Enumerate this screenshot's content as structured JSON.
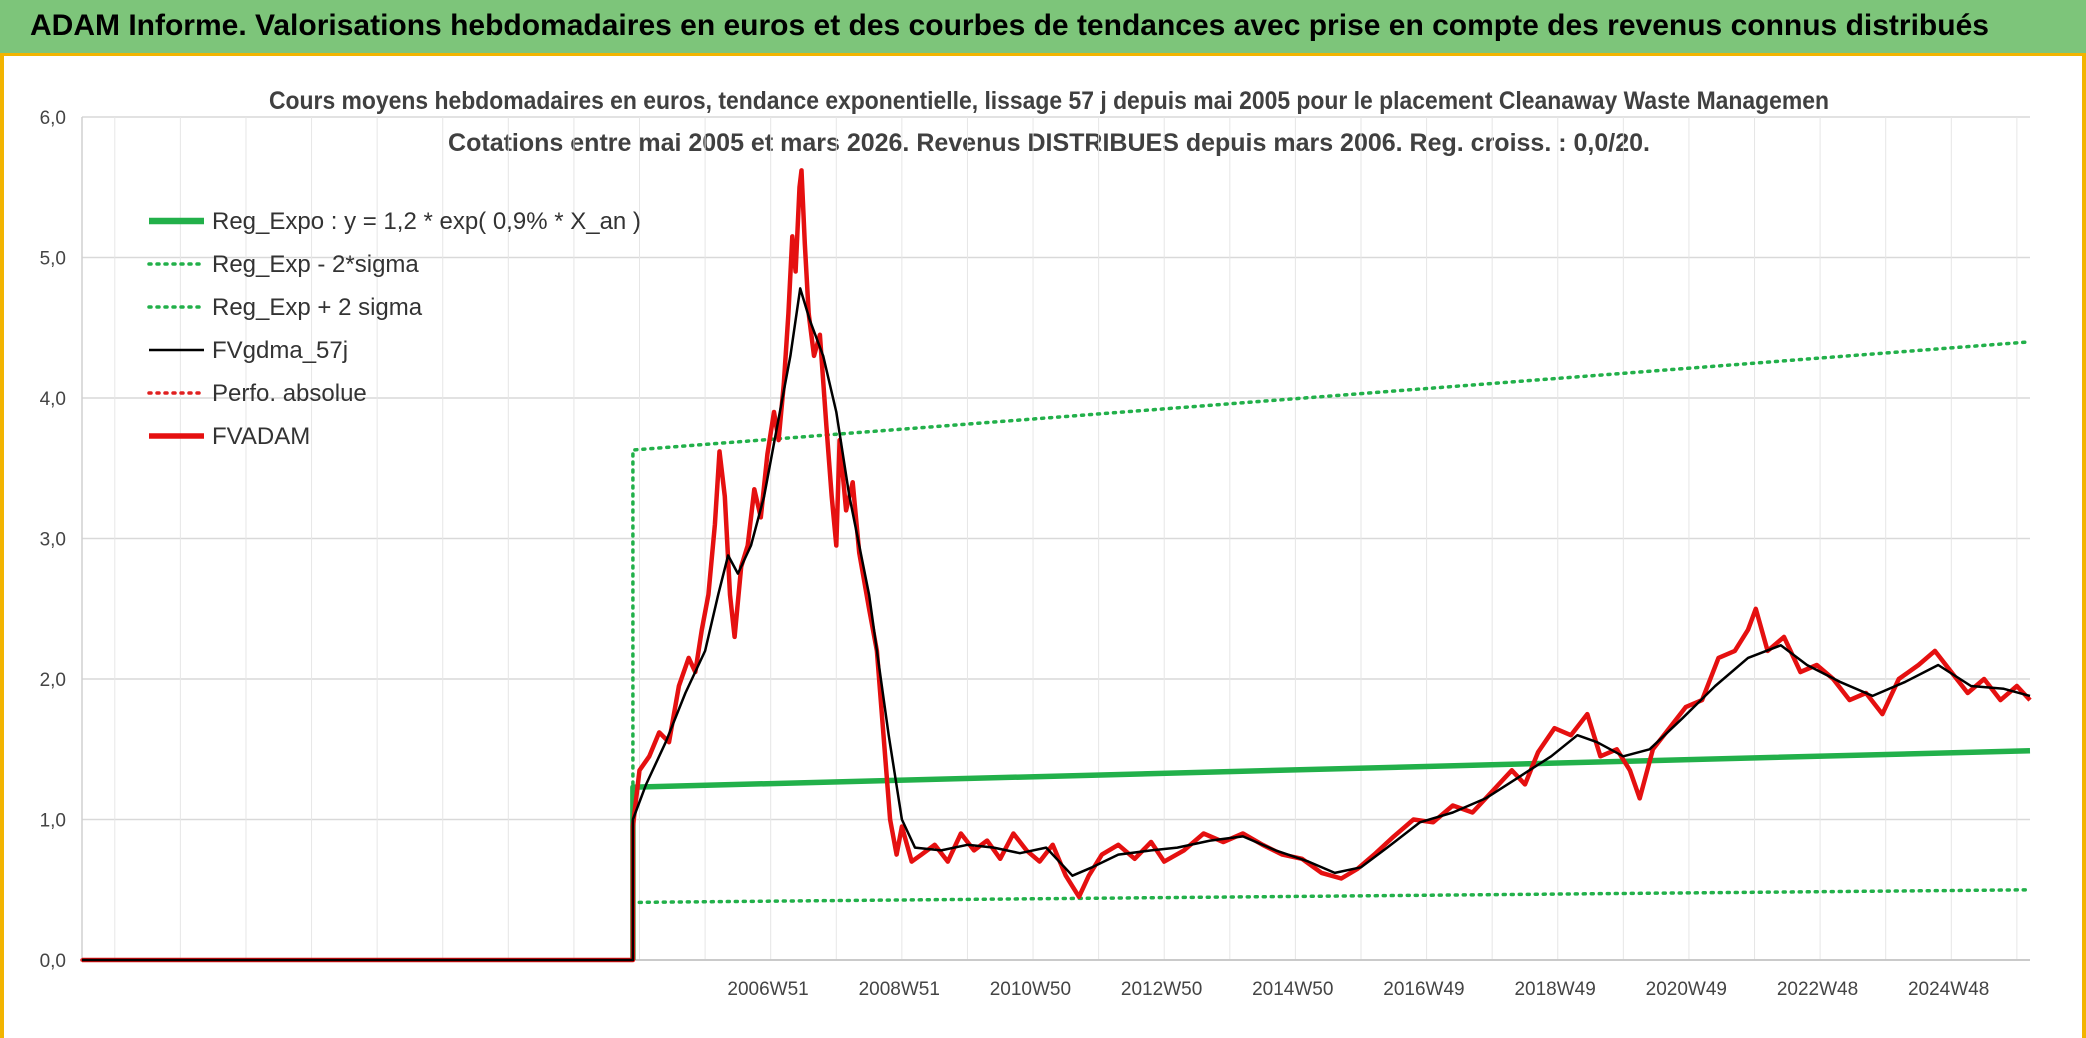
{
  "banner": {
    "title": "ADAM Informe. Valorisations hebdomadaires en euros et des courbes de tendances avec prise en compte des revenus connus distribués"
  },
  "chart_data": {
    "type": "line",
    "title": "Cours moyens hebdomadaires en euros, tendance exponentielle, lissage 57 j depuis mai 2005 pour le placement Cleanaway Waste Managemen",
    "subtitle": "Cotations entre mai 2005 et mars 2026. Revenus DISTRIBUES depuis mars 2006. Reg. croiss. : 0,0/20.",
    "xlabel": "",
    "ylabel": "",
    "x_range": [
      1996.5,
      2026.2
    ],
    "ylim": [
      0,
      6
    ],
    "y_ticks": [
      "0,0",
      "1,0",
      "2,0",
      "3,0",
      "4,0",
      "5,0",
      "6,0"
    ],
    "x_ticks": [
      {
        "label": "2006W51",
        "x": 2006.96
      },
      {
        "label": "2008W51",
        "x": 2008.96
      },
      {
        "label": "2010W50",
        "x": 2010.96
      },
      {
        "label": "2012W50",
        "x": 2012.96
      },
      {
        "label": "2014W50",
        "x": 2014.96
      },
      {
        "label": "2016W49",
        "x": 2016.96
      },
      {
        "label": "2018W49",
        "x": 2018.96
      },
      {
        "label": "2020W49",
        "x": 2020.96
      },
      {
        "label": "2022W48",
        "x": 2022.96
      },
      {
        "label": "2024W48",
        "x": 2024.96
      }
    ],
    "grid": true,
    "legend_position": "top-left",
    "series": [
      {
        "name": "Reg_Expo : y = 1,2 * exp( 0,9% *  X_an )",
        "color": "#22b04a",
        "style": "solid-thick",
        "points": [
          [
            2004.9,
            0
          ],
          [
            2004.9,
            1.23
          ],
          [
            2026.2,
            1.49
          ]
        ]
      },
      {
        "name": "Reg_Exp - 2*sigma",
        "color": "#22b04a",
        "style": "dotted",
        "points": [
          [
            2004.9,
            0
          ],
          [
            2004.9,
            0.41
          ],
          [
            2026.2,
            0.5
          ]
        ]
      },
      {
        "name": "Reg_Exp + 2 sigma",
        "color": "#22b04a",
        "style": "dotted",
        "points": [
          [
            2004.9,
            0
          ],
          [
            2004.9,
            3.63
          ],
          [
            2026.2,
            4.4
          ]
        ]
      },
      {
        "name": "FVgdma_57j",
        "color": "#000000",
        "style": "solid",
        "points": [
          [
            1996.5,
            0
          ],
          [
            2004.9,
            0
          ],
          [
            2004.9,
            1.0
          ],
          [
            2005.1,
            1.25
          ],
          [
            2005.4,
            1.55
          ],
          [
            2005.7,
            1.9
          ],
          [
            2006.0,
            2.2
          ],
          [
            2006.2,
            2.6
          ],
          [
            2006.35,
            2.88
          ],
          [
            2006.5,
            2.75
          ],
          [
            2006.7,
            2.95
          ],
          [
            2006.9,
            3.3
          ],
          [
            2007.1,
            3.8
          ],
          [
            2007.3,
            4.3
          ],
          [
            2007.45,
            4.78
          ],
          [
            2007.6,
            4.55
          ],
          [
            2007.8,
            4.3
          ],
          [
            2008.0,
            3.9
          ],
          [
            2008.2,
            3.3
          ],
          [
            2008.5,
            2.6
          ],
          [
            2008.8,
            1.6
          ],
          [
            2009.0,
            1.0
          ],
          [
            2009.2,
            0.8
          ],
          [
            2009.6,
            0.78
          ],
          [
            2010.0,
            0.82
          ],
          [
            2010.4,
            0.8
          ],
          [
            2010.8,
            0.76
          ],
          [
            2011.2,
            0.8
          ],
          [
            2011.6,
            0.6
          ],
          [
            2011.9,
            0.66
          ],
          [
            2012.3,
            0.75
          ],
          [
            2012.8,
            0.78
          ],
          [
            2013.2,
            0.8
          ],
          [
            2013.7,
            0.85
          ],
          [
            2014.2,
            0.88
          ],
          [
            2014.7,
            0.78
          ],
          [
            2015.2,
            0.7
          ],
          [
            2015.6,
            0.62
          ],
          [
            2016.0,
            0.66
          ],
          [
            2016.4,
            0.8
          ],
          [
            2016.9,
            0.98
          ],
          [
            2017.4,
            1.05
          ],
          [
            2017.9,
            1.15
          ],
          [
            2018.4,
            1.3
          ],
          [
            2018.9,
            1.45
          ],
          [
            2019.3,
            1.6
          ],
          [
            2019.6,
            1.55
          ],
          [
            2020.0,
            1.45
          ],
          [
            2020.4,
            1.5
          ],
          [
            2020.9,
            1.72
          ],
          [
            2021.4,
            1.95
          ],
          [
            2021.9,
            2.15
          ],
          [
            2022.4,
            2.24
          ],
          [
            2022.8,
            2.1
          ],
          [
            2023.3,
            1.98
          ],
          [
            2023.8,
            1.88
          ],
          [
            2024.3,
            1.98
          ],
          [
            2024.8,
            2.1
          ],
          [
            2025.3,
            1.95
          ],
          [
            2025.8,
            1.93
          ],
          [
            2026.2,
            1.88
          ]
        ]
      },
      {
        "name": "Perfo. absolue",
        "color": "#e02020",
        "style": "dotted",
        "points": [
          [
            1996.5,
            0
          ],
          [
            2004.9,
            0
          ]
        ]
      },
      {
        "name": "FVADAM",
        "color": "#e51010",
        "style": "solid-thick",
        "points": [
          [
            1996.5,
            0
          ],
          [
            2004.9,
            0
          ],
          [
            2004.9,
            0.95
          ],
          [
            2005.0,
            1.35
          ],
          [
            2005.15,
            1.45
          ],
          [
            2005.3,
            1.62
          ],
          [
            2005.45,
            1.55
          ],
          [
            2005.6,
            1.95
          ],
          [
            2005.75,
            2.15
          ],
          [
            2005.85,
            2.05
          ],
          [
            2005.95,
            2.35
          ],
          [
            2006.05,
            2.6
          ],
          [
            2006.15,
            3.1
          ],
          [
            2006.22,
            3.62
          ],
          [
            2006.3,
            3.3
          ],
          [
            2006.38,
            2.6
          ],
          [
            2006.45,
            2.3
          ],
          [
            2006.55,
            2.8
          ],
          [
            2006.65,
            2.95
          ],
          [
            2006.75,
            3.35
          ],
          [
            2006.85,
            3.15
          ],
          [
            2006.95,
            3.6
          ],
          [
            2007.05,
            3.9
          ],
          [
            2007.12,
            3.7
          ],
          [
            2007.2,
            4.1
          ],
          [
            2007.27,
            4.6
          ],
          [
            2007.33,
            5.15
          ],
          [
            2007.38,
            4.9
          ],
          [
            2007.44,
            5.5
          ],
          [
            2007.47,
            5.62
          ],
          [
            2007.52,
            5.1
          ],
          [
            2007.58,
            4.6
          ],
          [
            2007.66,
            4.3
          ],
          [
            2007.75,
            4.45
          ],
          [
            2007.85,
            3.8
          ],
          [
            2007.93,
            3.3
          ],
          [
            2008.0,
            2.95
          ],
          [
            2008.05,
            3.7
          ],
          [
            2008.15,
            3.2
          ],
          [
            2008.25,
            3.4
          ],
          [
            2008.35,
            2.9
          ],
          [
            2008.5,
            2.5
          ],
          [
            2008.62,
            2.2
          ],
          [
            2008.72,
            1.6
          ],
          [
            2008.82,
            1.0
          ],
          [
            2008.92,
            0.75
          ],
          [
            2009.0,
            0.95
          ],
          [
            2009.15,
            0.7
          ],
          [
            2009.3,
            0.75
          ],
          [
            2009.5,
            0.82
          ],
          [
            2009.7,
            0.7
          ],
          [
            2009.9,
            0.9
          ],
          [
            2010.1,
            0.78
          ],
          [
            2010.3,
            0.85
          ],
          [
            2010.5,
            0.72
          ],
          [
            2010.7,
            0.9
          ],
          [
            2010.9,
            0.78
          ],
          [
            2011.1,
            0.7
          ],
          [
            2011.3,
            0.82
          ],
          [
            2011.5,
            0.6
          ],
          [
            2011.7,
            0.45
          ],
          [
            2011.85,
            0.6
          ],
          [
            2012.05,
            0.75
          ],
          [
            2012.3,
            0.82
          ],
          [
            2012.55,
            0.72
          ],
          [
            2012.8,
            0.84
          ],
          [
            2013.0,
            0.7
          ],
          [
            2013.3,
            0.78
          ],
          [
            2013.6,
            0.9
          ],
          [
            2013.9,
            0.84
          ],
          [
            2014.2,
            0.9
          ],
          [
            2014.5,
            0.82
          ],
          [
            2014.8,
            0.75
          ],
          [
            2015.1,
            0.72
          ],
          [
            2015.4,
            0.62
          ],
          [
            2015.7,
            0.58
          ],
          [
            2015.95,
            0.65
          ],
          [
            2016.2,
            0.75
          ],
          [
            2016.5,
            0.88
          ],
          [
            2016.8,
            1.0
          ],
          [
            2017.1,
            0.98
          ],
          [
            2017.4,
            1.1
          ],
          [
            2017.7,
            1.05
          ],
          [
            2018.0,
            1.2
          ],
          [
            2018.3,
            1.35
          ],
          [
            2018.5,
            1.25
          ],
          [
            2018.7,
            1.48
          ],
          [
            2018.95,
            1.65
          ],
          [
            2019.2,
            1.6
          ],
          [
            2019.45,
            1.75
          ],
          [
            2019.65,
            1.45
          ],
          [
            2019.9,
            1.5
          ],
          [
            2020.1,
            1.35
          ],
          [
            2020.25,
            1.15
          ],
          [
            2020.45,
            1.5
          ],
          [
            2020.7,
            1.65
          ],
          [
            2020.95,
            1.8
          ],
          [
            2021.2,
            1.85
          ],
          [
            2021.45,
            2.15
          ],
          [
            2021.7,
            2.2
          ],
          [
            2021.9,
            2.35
          ],
          [
            2022.02,
            2.5
          ],
          [
            2022.2,
            2.2
          ],
          [
            2022.45,
            2.3
          ],
          [
            2022.7,
            2.05
          ],
          [
            2022.95,
            2.1
          ],
          [
            2023.2,
            2.0
          ],
          [
            2023.45,
            1.85
          ],
          [
            2023.7,
            1.9
          ],
          [
            2023.95,
            1.75
          ],
          [
            2024.2,
            2.0
          ],
          [
            2024.5,
            2.1
          ],
          [
            2024.75,
            2.2
          ],
          [
            2025.0,
            2.05
          ],
          [
            2025.25,
            1.9
          ],
          [
            2025.5,
            2.0
          ],
          [
            2025.75,
            1.85
          ],
          [
            2026.0,
            1.95
          ],
          [
            2026.2,
            1.85
          ]
        ]
      }
    ]
  }
}
